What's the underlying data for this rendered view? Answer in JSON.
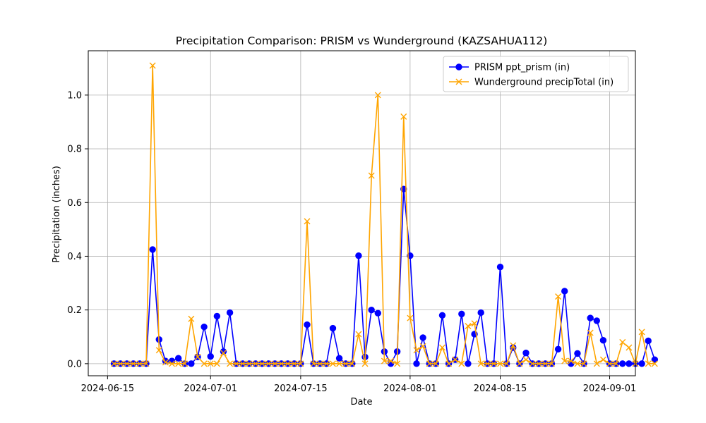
{
  "chart_data": {
    "type": "line",
    "title": "Precipitation Comparison: PRISM vs Wunderground (KAZSAHUA112)",
    "xlabel": "Date",
    "ylabel": "Precipitation (inches)",
    "x_start": "2024-06-16",
    "x_ticks": [
      "2024-06-15",
      "2024-07-01",
      "2024-07-15",
      "2024-08-01",
      "2024-08-15",
      "2024-09-01"
    ],
    "y_ticks": [
      "0.0",
      "0.2",
      "0.4",
      "0.6",
      "0.8",
      "1.0"
    ],
    "ylim": [
      -0.045,
      1.165
    ],
    "xlim": [
      "2024-06-12",
      "2024-09-05"
    ],
    "grid": true,
    "legend_position": "top-right",
    "series": [
      {
        "name": "PRISM ppt_prism (in)",
        "color": "#0000ff",
        "marker": "circle",
        "values": [
          0,
          0,
          0,
          0,
          0,
          0,
          0.425,
          0.09,
          0.01,
          0.01,
          0.02,
          0,
          0,
          0.025,
          0.137,
          0.027,
          0.177,
          0.045,
          0.19,
          0,
          0,
          0,
          0,
          0,
          0,
          0,
          0,
          0,
          0,
          0,
          0.145,
          0,
          0,
          0,
          0.132,
          0.02,
          0,
          0,
          0.402,
          0.025,
          0.2,
          0.188,
          0.045,
          0,
          0.045,
          0.65,
          0.402,
          0,
          0.097,
          0,
          0,
          0.18,
          0,
          0.015,
          0.185,
          0,
          0.11,
          0.19,
          0,
          0,
          0.36,
          0,
          0.06,
          0,
          0.04,
          0,
          0,
          0,
          0,
          0.054,
          0.27,
          0,
          0.038,
          0,
          0.17,
          0.16,
          0.087,
          0,
          0,
          0,
          0,
          0,
          0,
          0.085,
          0.015
        ]
      },
      {
        "name": "Wunderground precipTotal (in)",
        "color": "#ffa500",
        "marker": "x",
        "values": [
          0,
          0,
          0,
          0,
          0,
          0,
          1.11,
          0.05,
          0.005,
          0,
          0,
          0,
          0.167,
          0.025,
          0,
          0,
          0,
          0.04,
          0,
          0,
          0,
          0,
          0,
          0,
          0,
          0,
          0,
          0,
          0,
          0,
          0.53,
          0,
          0,
          0,
          0,
          0,
          0,
          0,
          0.11,
          0,
          0.7,
          1.0,
          0.01,
          0.01,
          0,
          0.92,
          0.17,
          0.05,
          0.065,
          0,
          0,
          0.06,
          0,
          0.015,
          0,
          0.14,
          0.15,
          0,
          0,
          0,
          0,
          0,
          0.068,
          0,
          0.015,
          0,
          0,
          0,
          0,
          0.25,
          0.01,
          0.01,
          0,
          0,
          0.115,
          0,
          0.015,
          0,
          0,
          0.08,
          0.06,
          0,
          0.118,
          0,
          0
        ]
      }
    ]
  }
}
